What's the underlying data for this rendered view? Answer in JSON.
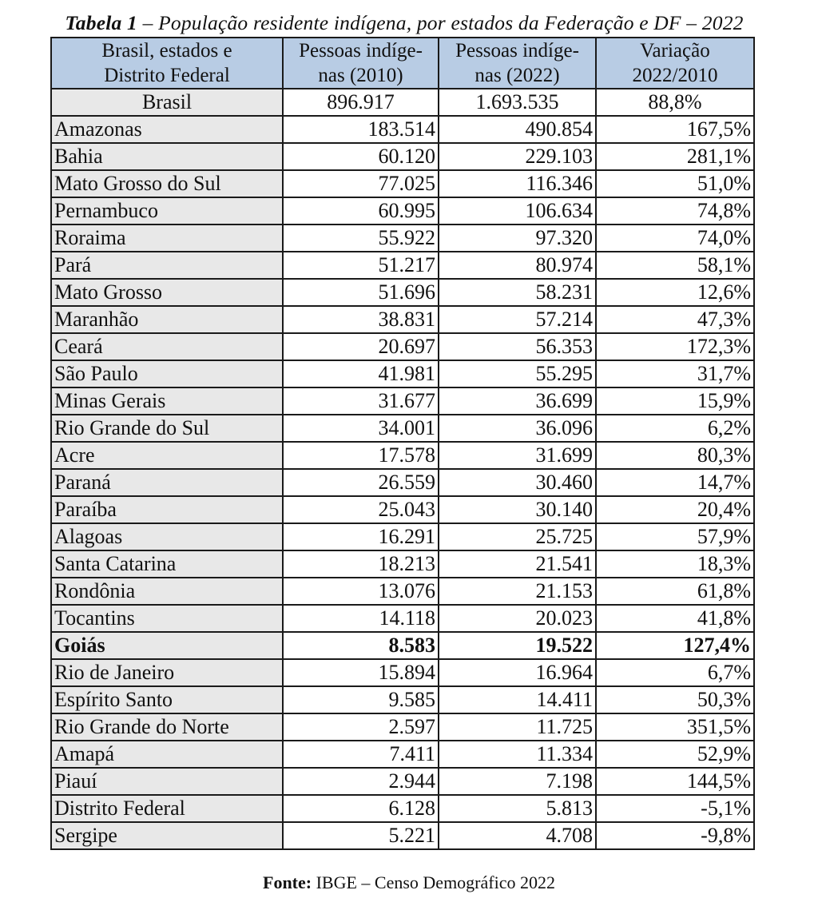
{
  "title": {
    "label": "Tabela 1",
    "text": " – População residente indígena, por estados da Federação e DF – 2022"
  },
  "headers": [
    "Brasil, estados e Distrito Federal",
    "Pessoas indíge-nas (2010)",
    "Pessoas indíge-nas (2022)",
    "Variação 2022/2010"
  ],
  "header_lines": [
    [
      "Brasil, estados e",
      "Distrito Federal"
    ],
    [
      "Pessoas indíge-",
      "nas (2010)"
    ],
    [
      "Pessoas indíge-",
      "nas (2022)"
    ],
    [
      "Variação",
      "2022/2010"
    ]
  ],
  "total": {
    "name": "Brasil",
    "p2010": "896.917",
    "p2022": "1.693.535",
    "var": "88,8%"
  },
  "rows": [
    {
      "name": "Amazonas",
      "p2010": "183.514",
      "p2022": "490.854",
      "var": "167,5%"
    },
    {
      "name": "Bahia",
      "p2010": "60.120",
      "p2022": "229.103",
      "var": "281,1%"
    },
    {
      "name": "Mato Grosso do Sul",
      "p2010": "77.025",
      "p2022": "116.346",
      "var": "51,0%"
    },
    {
      "name": "Pernambuco",
      "p2010": "60.995",
      "p2022": "106.634",
      "var": "74,8%"
    },
    {
      "name": "Roraima",
      "p2010": "55.922",
      "p2022": "97.320",
      "var": "74,0%"
    },
    {
      "name": "Pará",
      "p2010": "51.217",
      "p2022": "80.974",
      "var": "58,1%"
    },
    {
      "name": "Mato Grosso",
      "p2010": "51.696",
      "p2022": "58.231",
      "var": "12,6%"
    },
    {
      "name": "Maranhão",
      "p2010": "38.831",
      "p2022": "57.214",
      "var": "47,3%"
    },
    {
      "name": "Ceará",
      "p2010": "20.697",
      "p2022": "56.353",
      "var": "172,3%"
    },
    {
      "name": "São Paulo",
      "p2010": "41.981",
      "p2022": "55.295",
      "var": "31,7%"
    },
    {
      "name": "Minas Gerais",
      "p2010": "31.677",
      "p2022": "36.699",
      "var": "15,9%"
    },
    {
      "name": "Rio Grande do Sul",
      "p2010": "34.001",
      "p2022": "36.096",
      "var": "6,2%"
    },
    {
      "name": "Acre",
      "p2010": "17.578",
      "p2022": "31.699",
      "var": "80,3%"
    },
    {
      "name": "Paraná",
      "p2010": "26.559",
      "p2022": "30.460",
      "var": "14,7%"
    },
    {
      "name": "Paraíba",
      "p2010": "25.043",
      "p2022": "30.140",
      "var": "20,4%"
    },
    {
      "name": "Alagoas",
      "p2010": "16.291",
      "p2022": "25.725",
      "var": "57,9%"
    },
    {
      "name": "Santa Catarina",
      "p2010": "18.213",
      "p2022": "21.541",
      "var": "18,3%"
    },
    {
      "name": "Rondônia",
      "p2010": "13.076",
      "p2022": "21.153",
      "var": "61,8%"
    },
    {
      "name": "Tocantins",
      "p2010": "14.118",
      "p2022": "20.023",
      "var": "41,8%"
    },
    {
      "name": "Goiás",
      "p2010": "8.583",
      "p2022": "19.522",
      "var": "127,4%",
      "bold": true
    },
    {
      "name": "Rio de Janeiro",
      "p2010": "15.894",
      "p2022": "16.964",
      "var": "6,7%"
    },
    {
      "name": "Espírito Santo",
      "p2010": "9.585",
      "p2022": "14.411",
      "var": "50,3%"
    },
    {
      "name": "Rio Grande do Norte",
      "p2010": "2.597",
      "p2022": "11.725",
      "var": "351,5%"
    },
    {
      "name": "Amapá",
      "p2010": "7.411",
      "p2022": "11.334",
      "var": "52,9%"
    },
    {
      "name": "Piauí",
      "p2010": "2.944",
      "p2022": "7.198",
      "var": "144,5%"
    },
    {
      "name": "Distrito Federal",
      "p2010": "6.128",
      "p2022": "5.813",
      "var": "-5,1%"
    },
    {
      "name": "Sergipe",
      "p2010": "5.221",
      "p2022": "4.708",
      "var": "-9,8%"
    }
  ],
  "source": {
    "label": "Fonte:",
    "text": " IBGE – Censo Demográfico 2022"
  },
  "colors": {
    "header_bg": "#b8cce4",
    "name_col_bg": "#e8e8e8"
  }
}
